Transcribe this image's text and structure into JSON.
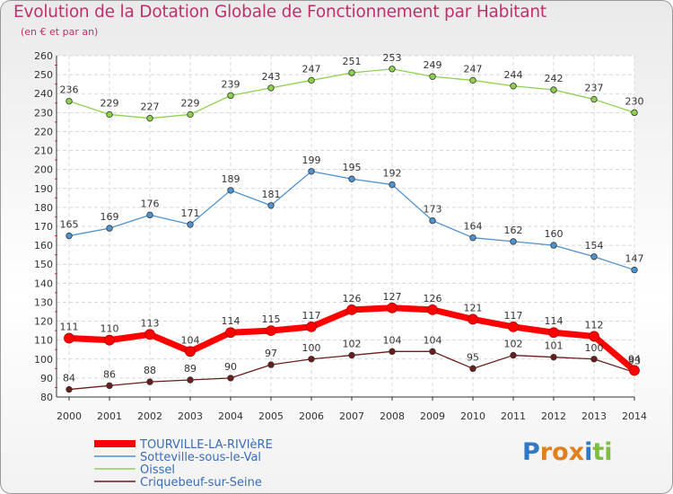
{
  "header": {
    "title": "Evolution de la Dotation Globale de Fonctionnement par Habitant",
    "subtitle": "(en € et par an)"
  },
  "brand": {
    "logo_letters": [
      "P",
      "r",
      "o",
      "x",
      "i",
      "t",
      "i"
    ],
    "logo_colors": [
      "#2f79c7",
      "#e0811e",
      "#e0811e",
      "#e0811e",
      "#2f79c7",
      "#7fbf3f",
      "#7fbf3f"
    ]
  },
  "chart_data": {
    "type": "line",
    "x": [
      2000,
      2001,
      2002,
      2003,
      2004,
      2005,
      2006,
      2007,
      2008,
      2009,
      2010,
      2011,
      2012,
      2013,
      2014
    ],
    "ylim": [
      80,
      260
    ],
    "yticks": [
      80,
      90,
      100,
      110,
      120,
      130,
      140,
      150,
      160,
      170,
      180,
      190,
      200,
      210,
      220,
      230,
      240,
      250,
      260
    ],
    "grid": true,
    "legend_position": "bottom-left",
    "series": [
      {
        "name": "TOURVILLE-LA-RIVIèRE",
        "color": "#ff0000",
        "emphasis": true,
        "values": [
          111,
          110,
          113,
          104,
          114,
          115,
          117,
          126,
          127,
          126,
          121,
          117,
          114,
          112,
          94
        ],
        "labels": [
          "111",
          "110",
          "113",
          "104",
          "114",
          "115",
          "117",
          "126",
          "127",
          "126",
          "121",
          "117",
          "114",
          "112",
          "94"
        ]
      },
      {
        "name": "Sotteville-sous-le-Val",
        "color": "#4f93cf",
        "emphasis": false,
        "values": [
          165,
          169,
          176,
          171,
          189,
          181,
          199,
          195,
          192,
          173,
          164,
          162,
          160,
          154,
          147
        ],
        "labels": [
          "165",
          "169",
          "176",
          "171",
          "189",
          "181",
          "199",
          "195",
          "192",
          "173",
          "164",
          "162",
          "160",
          "154",
          "147"
        ]
      },
      {
        "name": "Oissel",
        "color": "#8fd14f",
        "emphasis": false,
        "values": [
          236,
          229,
          227,
          229,
          239,
          243,
          247,
          251,
          253,
          249,
          247,
          244,
          242,
          237,
          230
        ],
        "labels": [
          "236",
          "229",
          "227",
          "229",
          "239",
          "243",
          "247",
          "251",
          "253",
          "249",
          "247",
          "244",
          "242",
          "237",
          "230"
        ]
      },
      {
        "name": "Criquebeuf-sur-Seine",
        "color": "#6b1d1d",
        "emphasis": false,
        "values": [
          84,
          86,
          88,
          89,
          90,
          97,
          100,
          102,
          104,
          104,
          95,
          102,
          101,
          100,
          93
        ],
        "labels": [
          "84",
          "86",
          "88",
          "89",
          "90",
          "97",
          "100",
          "102",
          "104",
          "104",
          "95",
          "102",
          "101",
          "100",
          "93"
        ]
      }
    ]
  }
}
